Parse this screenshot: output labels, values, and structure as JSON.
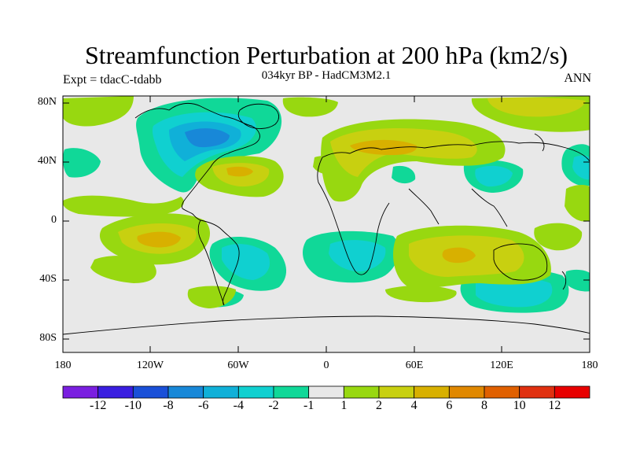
{
  "title": "Streamfunction Perturbation at 200 hPa (km2/s)",
  "subtitle": "034kyr BP - HadCM3M2.1",
  "left_label": "Expt = tdacC-tdabb",
  "right_label": "ANN",
  "lat_labels": [
    "80N",
    "40N",
    "0",
    "40S",
    "80S"
  ],
  "lon_labels": [
    "180",
    "120W",
    "60W",
    "0",
    "60E",
    "120E",
    "180"
  ],
  "colorbar": {
    "labels": [
      "-12",
      "-10",
      "-8",
      "-6",
      "-4",
      "-2",
      "-1",
      "1",
      "2",
      "4",
      "6",
      "8",
      "10",
      "12"
    ],
    "colors": [
      "#7a1fe0",
      "#3a1ee0",
      "#1a50d8",
      "#1888d8",
      "#10b0d8",
      "#10d0d0",
      "#10d898",
      "#e8e8e8",
      "#98d810",
      "#c8d010",
      "#d8b000",
      "#e08800",
      "#e06000",
      "#e03010",
      "#e80000"
    ]
  },
  "map_colors": {
    "background": "#e8e8e8",
    "neg_light": "#10d898",
    "neg_mid": "#10d0d0",
    "neg_strong": "#10b0d8",
    "neg_deep": "#1888d8",
    "pos_light": "#98d810",
    "pos_mid": "#c8d010",
    "pos_strong": "#d8b000",
    "coast": "#000000"
  }
}
